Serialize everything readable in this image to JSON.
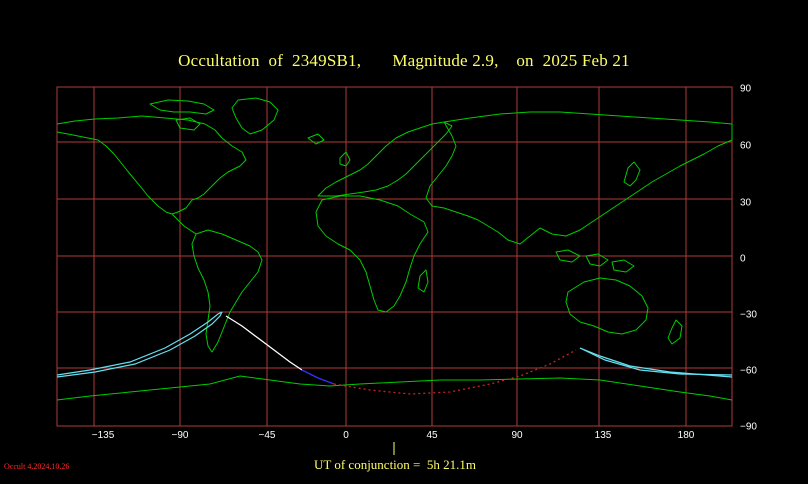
{
  "header": {
    "title": "Occultation  of  2349SB1,       Magnitude 2.9,    on  2025 Feb 21"
  },
  "map": {
    "lon_ticks": [
      "−135",
      "−90",
      "−45",
      "0",
      "45",
      "90",
      "135",
      "180"
    ],
    "lat_ticks": [
      "90",
      "60",
      "30",
      "0",
      "−30",
      "−60",
      "−90"
    ],
    "colors": {
      "background": "#000000",
      "grid": "#b03a3a",
      "coastline": "#00cc00",
      "limit_lines": "#66e0f0",
      "path_night": "#ffffff",
      "path_twilight": "#3333ff",
      "path_daylight": "#cc2222"
    }
  },
  "footer": {
    "ut_of_conjunction": "UT of conjunction =  5h 21.1m",
    "version": "Occult 4.2024.10.26"
  }
}
